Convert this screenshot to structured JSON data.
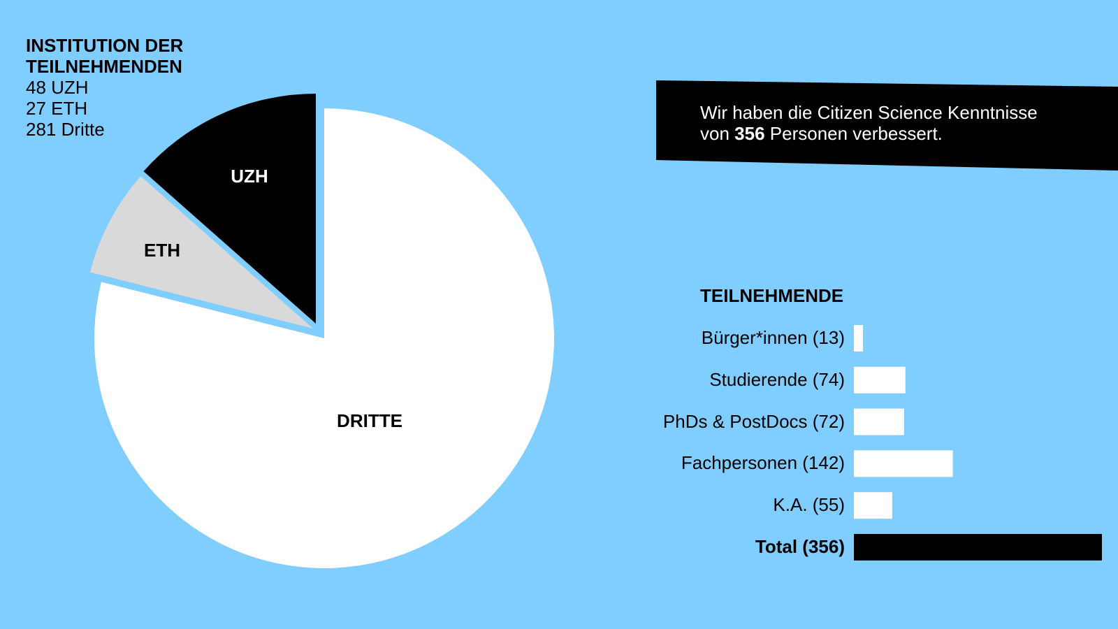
{
  "legend": {
    "title": "INSTITUTION DER TEILNEHMENDEN",
    "lines": [
      "48 UZH",
      "27 ETH",
      "281 Dritte"
    ]
  },
  "banner": {
    "line1": "Wir haben die Citizen Science Kenntnisse",
    "line2_prefix": "von ",
    "line2_bold": "356",
    "line2_suffix": " Personen verbessert."
  },
  "colors": {
    "background": "#80cdff",
    "uzh": "#000000",
    "eth": "#d9d9d9",
    "dritte": "#ffffff",
    "bars": "#ffffff",
    "total_bar": "#000000"
  },
  "chart_data": [
    {
      "type": "pie",
      "title": "INSTITUTION DER TEILNEHMENDEN",
      "categories": [
        "UZH",
        "ETH",
        "DRITTE"
      ],
      "values": [
        48,
        27,
        281
      ],
      "label_colors": [
        "#ffffff",
        "#000000",
        "#000000"
      ]
    },
    {
      "type": "bar",
      "orientation": "horizontal",
      "title": "TEILNEHMENDE",
      "categories": [
        "Bürger*innen (13)",
        "Studierende (74)",
        "PhDs & PostDocs (72)",
        "Fachpersonen (142)",
        "K.A. (55)",
        "Total (356)"
      ],
      "values": [
        13,
        74,
        72,
        142,
        55,
        356
      ]
    }
  ]
}
